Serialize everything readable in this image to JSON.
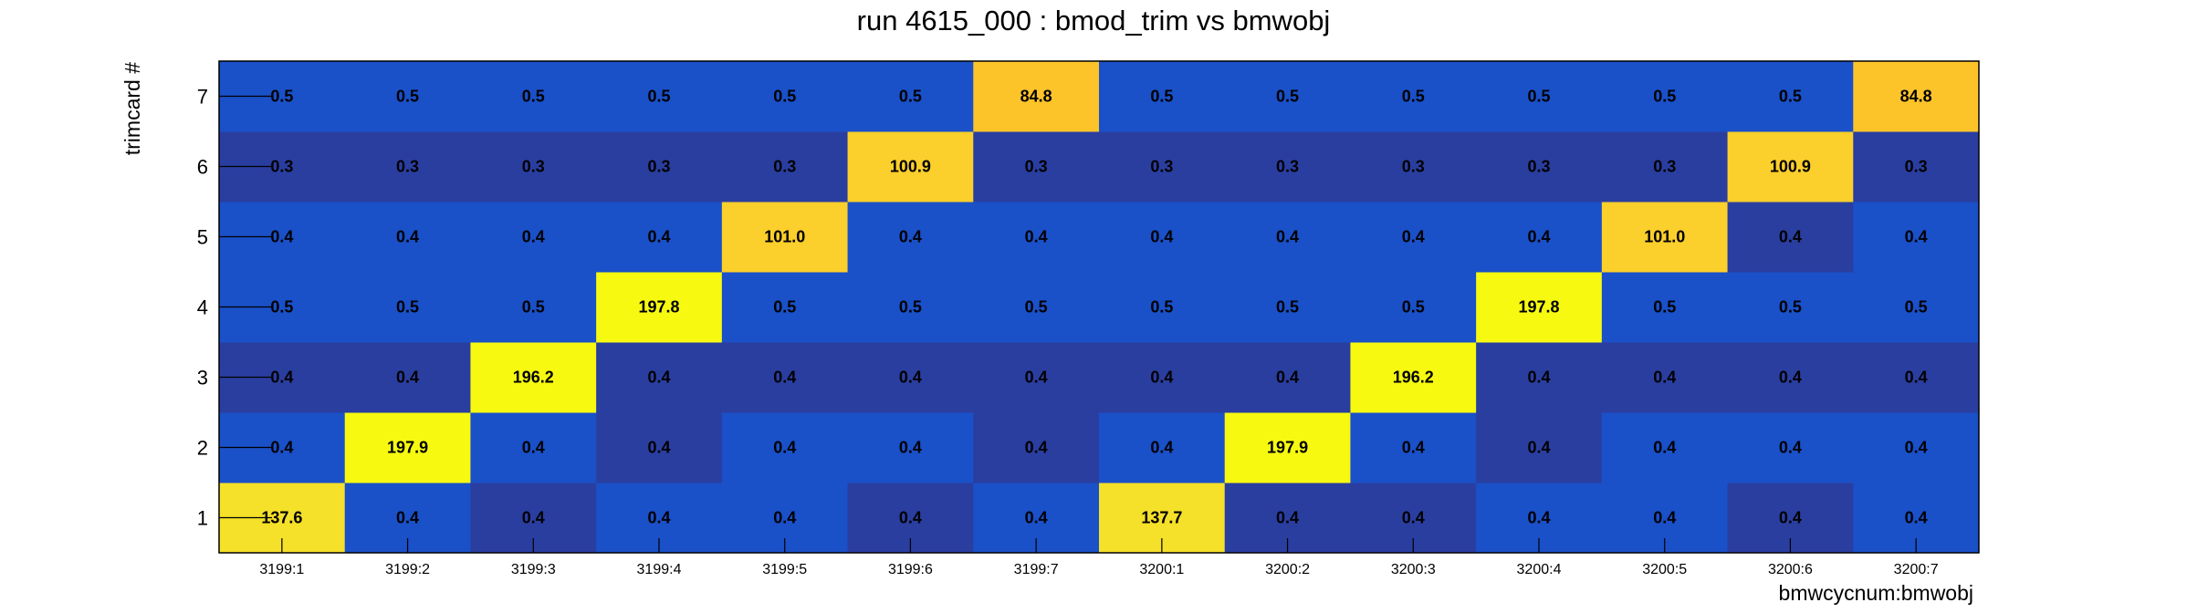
{
  "chart_data": {
    "type": "heatmap",
    "title": "run 4615_000 : bmod_trim vs bmwobj",
    "xlabel": "bmwcycnum:bmwobj",
    "ylabel": "trimcard #",
    "x_categories": [
      "3199:1",
      "3199:2",
      "3199:3",
      "3199:4",
      "3199:5",
      "3199:6",
      "3199:7",
      "3200:1",
      "3200:2",
      "3200:3",
      "3200:4",
      "3200:5",
      "3200:6",
      "3200:7"
    ],
    "y_categories": [
      "1",
      "2",
      "3",
      "4",
      "5",
      "6",
      "7"
    ],
    "values": [
      [
        137.6,
        0.4,
        0.4,
        0.4,
        0.4,
        0.4,
        0.4,
        137.7,
        0.4,
        0.4,
        0.4,
        0.4,
        0.4,
        0.4
      ],
      [
        0.4,
        197.9,
        0.4,
        0.4,
        0.4,
        0.4,
        0.4,
        0.4,
        197.9,
        0.4,
        0.4,
        0.4,
        0.4,
        0.4
      ],
      [
        0.4,
        0.4,
        196.2,
        0.4,
        0.4,
        0.4,
        0.4,
        0.4,
        0.4,
        196.2,
        0.4,
        0.4,
        0.4,
        0.4
      ],
      [
        0.5,
        0.5,
        0.5,
        197.8,
        0.5,
        0.5,
        0.5,
        0.5,
        0.5,
        0.5,
        197.8,
        0.5,
        0.5,
        0.5
      ],
      [
        0.4,
        0.4,
        0.4,
        0.4,
        101.0,
        0.4,
        0.4,
        0.4,
        0.4,
        0.4,
        0.4,
        101.0,
        0.4,
        0.4
      ],
      [
        0.3,
        0.3,
        0.3,
        0.3,
        0.3,
        100.9,
        0.3,
        0.3,
        0.3,
        0.3,
        0.3,
        0.3,
        100.9,
        0.3
      ],
      [
        0.5,
        0.5,
        0.5,
        0.5,
        0.5,
        0.5,
        84.8,
        0.5,
        0.5,
        0.5,
        0.5,
        0.5,
        0.5,
        84.8
      ]
    ],
    "cell_colors": [
      [
        "#f5e02a",
        "#1a50c8",
        "#2a3ea0",
        "#1a50c8",
        "#1a50c8",
        "#2a3ea0",
        "#1a50c8",
        "#f5e02a",
        "#2a3ea0",
        "#2a3ea0",
        "#1a50c8",
        "#1a50c8",
        "#2a3ea0",
        "#1a50c8"
      ],
      [
        "#1a50c8",
        "#f7fa10",
        "#1a50c8",
        "#2a3ea0",
        "#1a50c8",
        "#1a50c8",
        "#2a3ea0",
        "#1a50c8",
        "#f7fa10",
        "#1a50c8",
        "#2a3ea0",
        "#1a50c8",
        "#1a50c8",
        "#1a50c8"
      ],
      [
        "#2a3ea0",
        "#2a3ea0",
        "#f7fa10",
        "#2a3ea0",
        "#2a3ea0",
        "#2a3ea0",
        "#2a3ea0",
        "#2a3ea0",
        "#2a3ea0",
        "#f7fa10",
        "#2a3ea0",
        "#2a3ea0",
        "#2a3ea0",
        "#2a3ea0"
      ],
      [
        "#1a50c8",
        "#1a50c8",
        "#1a50c8",
        "#f7fa10",
        "#1a50c8",
        "#1a50c8",
        "#1a50c8",
        "#1a50c8",
        "#1a50c8",
        "#1a50c8",
        "#f7fa10",
        "#1a50c8",
        "#1a50c8",
        "#1a50c8"
      ],
      [
        "#1a50c8",
        "#1a50c8",
        "#1a50c8",
        "#1a50c8",
        "#fbcf2c",
        "#1a50c8",
        "#1a50c8",
        "#1a50c8",
        "#1a50c8",
        "#1a50c8",
        "#1a50c8",
        "#fbcf2c",
        "#2a3ea0",
        "#1a50c8"
      ],
      [
        "#2a3ea0",
        "#2a3ea0",
        "#2a3ea0",
        "#2a3ea0",
        "#2a3ea0",
        "#fbcf2c",
        "#2a3ea0",
        "#2a3ea0",
        "#2a3ea0",
        "#2a3ea0",
        "#2a3ea0",
        "#2a3ea0",
        "#fbcf2c",
        "#2a3ea0"
      ],
      [
        "#1a50c8",
        "#1a50c8",
        "#1a50c8",
        "#1a50c8",
        "#1a50c8",
        "#1a50c8",
        "#fdc42a",
        "#1a50c8",
        "#1a50c8",
        "#1a50c8",
        "#1a50c8",
        "#1a50c8",
        "#1a50c8",
        "#fdc42a"
      ]
    ],
    "value_format_decimals": 1,
    "grid": false,
    "legend": "none"
  }
}
